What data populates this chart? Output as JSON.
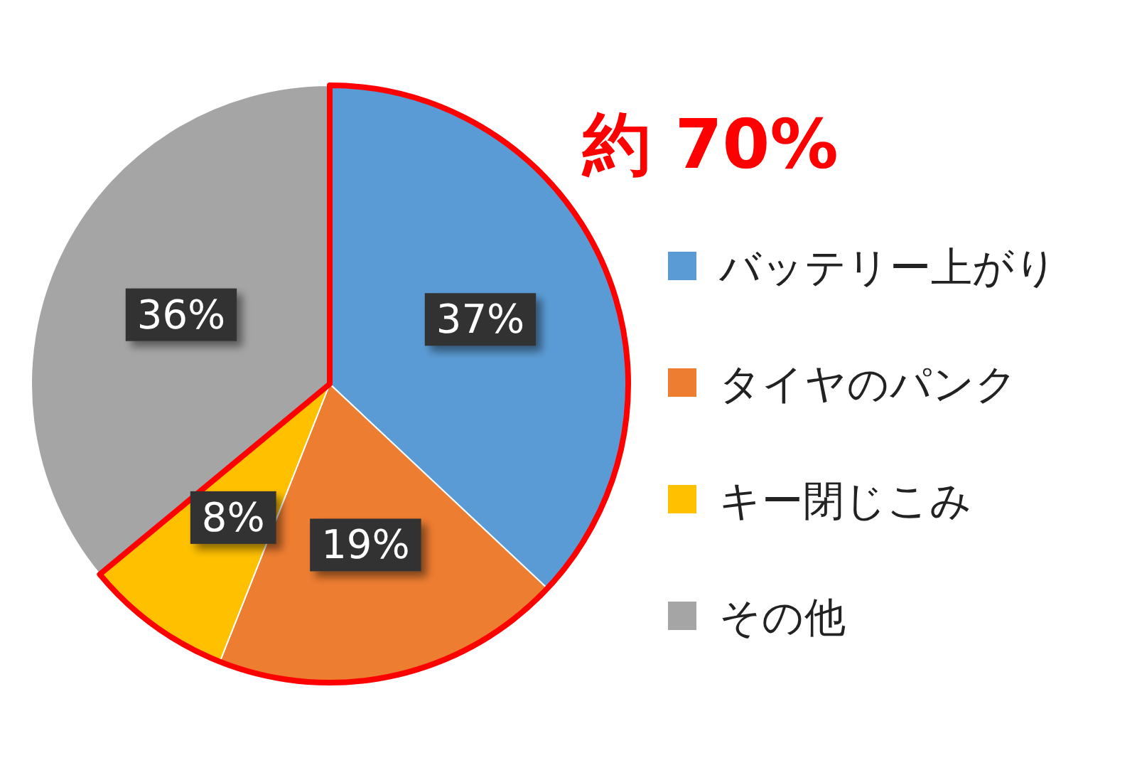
{
  "chart_data": {
    "type": "pie",
    "categories": [
      "バッテリー上がり",
      "タイヤのパンク",
      "キー閉じこみ",
      "その他"
    ],
    "values": [
      37,
      19,
      8,
      36
    ],
    "colors": [
      "#5b9bd5",
      "#ed7d31",
      "#ffc000",
      "#a5a5a5"
    ],
    "value_labels": [
      "37%",
      "19%",
      "8%",
      "36%"
    ],
    "legend": "right",
    "annotations": [
      "約 70%"
    ]
  }
}
